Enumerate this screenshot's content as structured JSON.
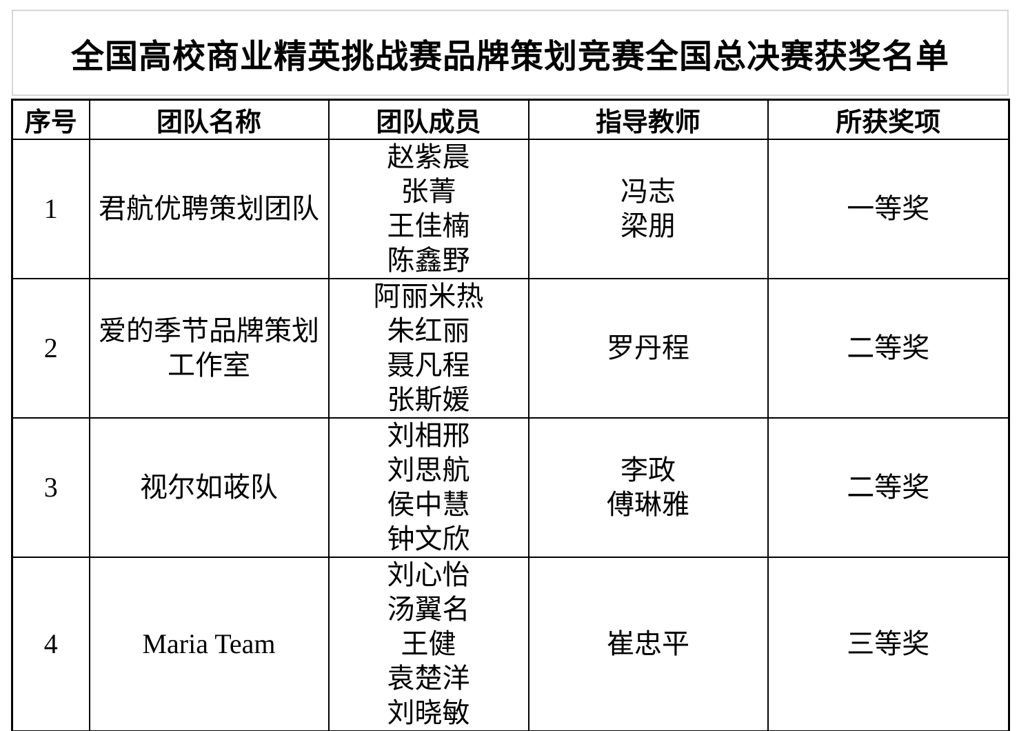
{
  "title": "全国高校商业精英挑战赛品牌策划竞赛全国总决赛获奖名单",
  "table": {
    "headers": [
      "序号",
      "团队名称",
      "团队成员",
      "指导教师",
      "所获奖项"
    ],
    "rows": [
      {
        "no": "1",
        "team": [
          "君航优聘策划团队"
        ],
        "members": [
          "赵紫晨",
          "张菁",
          "王佳楠",
          "陈鑫野"
        ],
        "teachers": [
          "冯志",
          "梁朋"
        ],
        "award": "一等奖"
      },
      {
        "no": "2",
        "team": [
          "爱的季节品牌策划",
          "工作室"
        ],
        "members": [
          "阿丽米热",
          "朱红丽",
          "聂凡程",
          "张斯媛"
        ],
        "teachers": [
          "罗丹程"
        ],
        "award": "二等奖"
      },
      {
        "no": "3",
        "team": [
          "视尔如荍队"
        ],
        "members": [
          "刘相邢",
          "刘思航",
          "侯中慧",
          "钟文欣"
        ],
        "teachers": [
          "李政",
          "傅琳雅"
        ],
        "award": "二等奖"
      },
      {
        "no": "4",
        "team": [
          "Maria Team"
        ],
        "members": [
          "刘心怡",
          "汤翼名",
          "王健",
          "袁楚洋",
          "刘晓敏"
        ],
        "teachers": [
          "崔忠平"
        ],
        "award": "三等奖"
      }
    ]
  }
}
